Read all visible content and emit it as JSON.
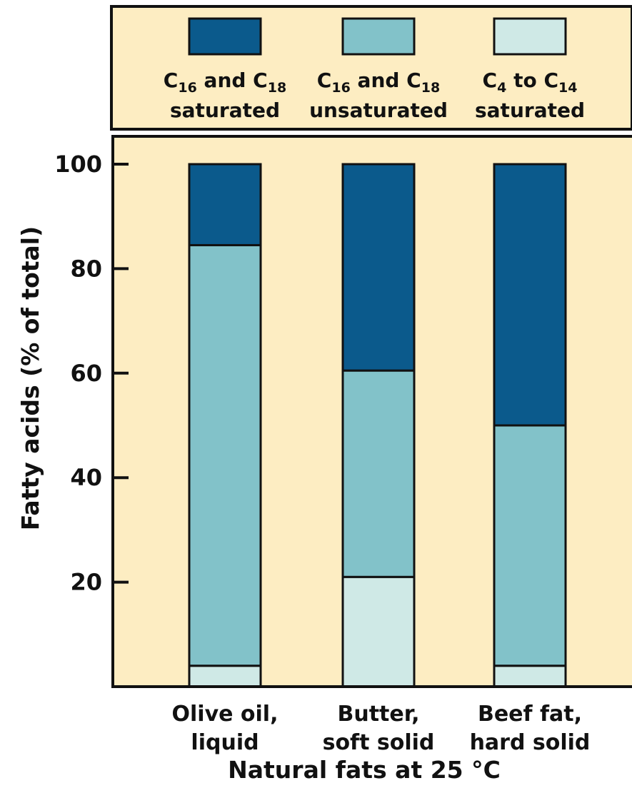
{
  "chart_data": {
    "type": "bar",
    "stacked": true,
    "xlabel": "Natural fats at 25 °C",
    "ylabel": "Fatty acids (% of total)",
    "ylim": [
      0,
      100
    ],
    "yticks": [
      20,
      40,
      60,
      80,
      100
    ],
    "grid": false,
    "legend_position": "top",
    "categories": [
      {
        "lines": [
          "Olive oil,",
          "liquid"
        ]
      },
      {
        "lines": [
          "Butter,",
          "soft solid"
        ]
      },
      {
        "lines": [
          "Beef fat,",
          "hard solid"
        ]
      }
    ],
    "series": [
      {
        "key": "s1",
        "label_main_1": "C",
        "label_sub_1": "4",
        "label_mid": " to C",
        "label_sub_2": "14",
        "label_line2": "saturated",
        "color": "#cfe9e6",
        "values": [
          4,
          21,
          4
        ]
      },
      {
        "key": "s2",
        "label_main_1": "C",
        "label_sub_1": "16",
        "label_mid": " and C",
        "label_sub_2": "18",
        "label_line2": "unsaturated",
        "color": "#82c2c9",
        "values": [
          80.5,
          39.5,
          46
        ]
      },
      {
        "key": "s3",
        "label_main_1": "C",
        "label_sub_1": "16",
        "label_mid": " and C",
        "label_sub_2": "18",
        "label_line2": "saturated",
        "color": "#0b5a8c",
        "values": [
          15.5,
          39.5,
          50
        ]
      }
    ],
    "legend_order": [
      "s3",
      "s2",
      "s1"
    ]
  },
  "colors": {
    "panel_background": "#fdedc2",
    "frame": "#111111"
  }
}
